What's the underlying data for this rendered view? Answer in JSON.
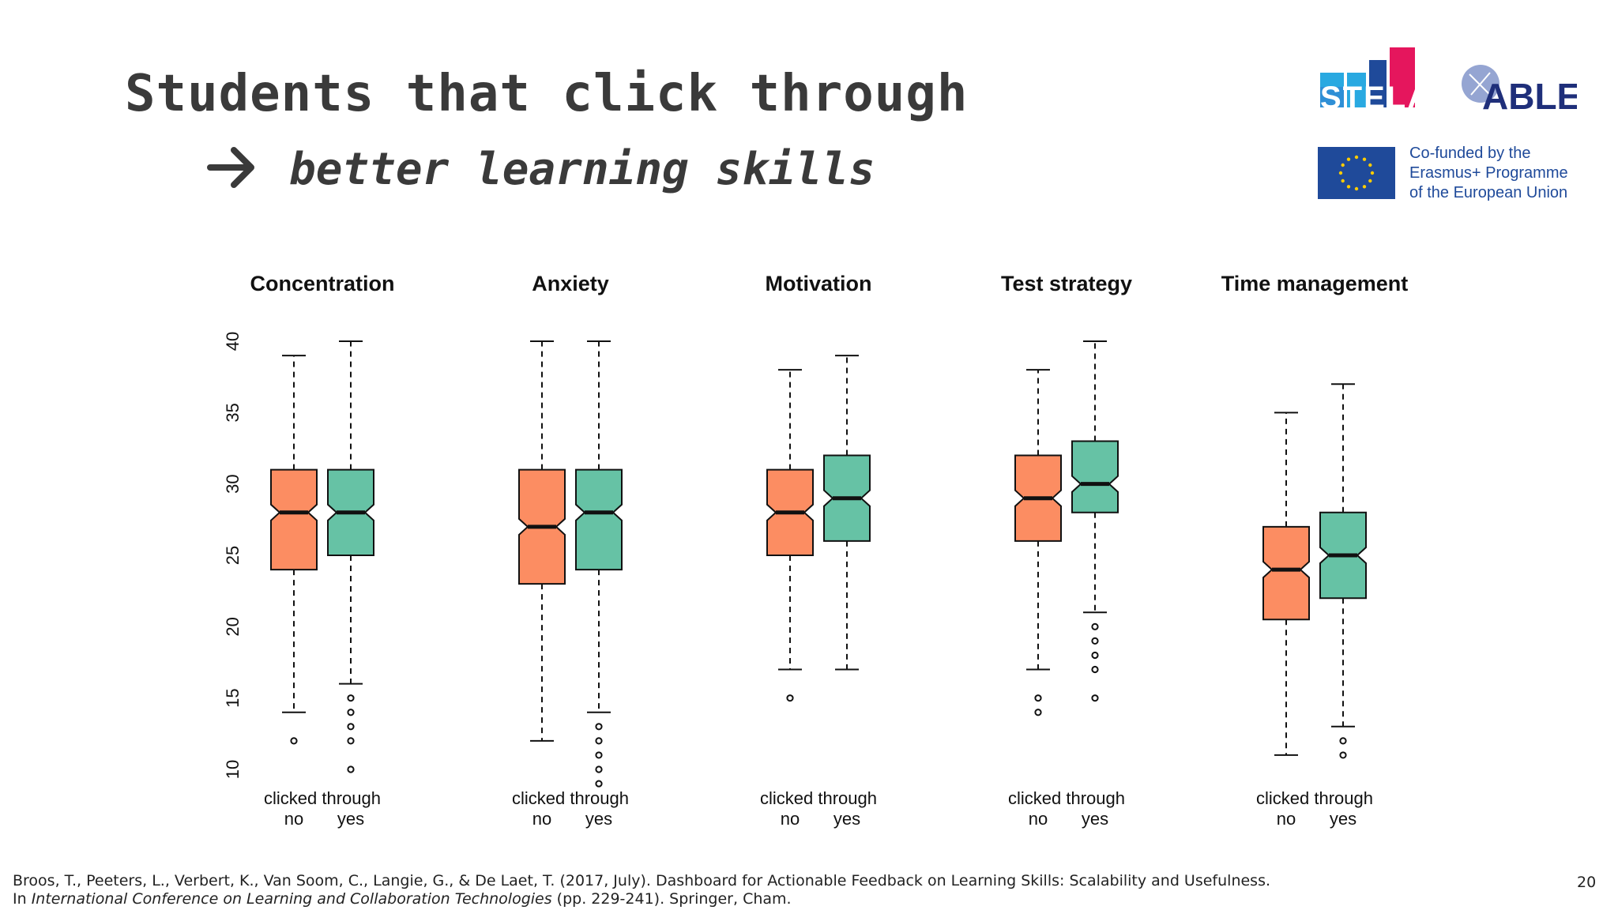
{
  "slide": {
    "title": "Students that click through",
    "subtitle": "better learning skills",
    "page_number": "20"
  },
  "logos": {
    "stela": "STELA",
    "able": "ABLE",
    "eu_lines": [
      "Co-funded by the",
      "Erasmus+ Programme",
      "of the European Union"
    ]
  },
  "reference": {
    "line1": "Broos, T., Peeters, L., Verbert, K., Van Soom, C., Langie, G., & De Laet, T. (2017, July). Dashboard for Actionable Feedback on Learning Skills: Scalability and Usefulness.",
    "line2_prefix": "In ",
    "line2_italic": "International Conference on Learning and Collaboration Technologies",
    "line2_suffix": " (pp. 229-241). Springer, Cham."
  },
  "colors": {
    "no": "#fc8d62",
    "yes": "#66c2a5",
    "text": "#3a3a3a",
    "eu_blue": "#1f4a9a"
  },
  "chart_data": {
    "type": "boxplot",
    "notched": true,
    "y_ticks": [
      10,
      15,
      20,
      25,
      30,
      35,
      40
    ],
    "ylim": [
      10,
      40
    ],
    "xlabel": "clicked through",
    "group_labels": [
      "no",
      "yes"
    ],
    "panels": [
      {
        "title": "Concentration",
        "boxes": [
          {
            "group": "no",
            "whisker_low": 14,
            "q1": 24,
            "median": 28,
            "q3": 31,
            "whisker_high": 39,
            "outliers": [
              12
            ]
          },
          {
            "group": "yes",
            "whisker_low": 16,
            "q1": 25,
            "median": 28,
            "q3": 31,
            "whisker_high": 40,
            "outliers": [
              15,
              14,
              13,
              12,
              10
            ]
          }
        ]
      },
      {
        "title": "Anxiety",
        "boxes": [
          {
            "group": "no",
            "whisker_low": 12,
            "q1": 23,
            "median": 27,
            "q3": 31,
            "whisker_high": 40,
            "outliers": []
          },
          {
            "group": "yes",
            "whisker_low": 14,
            "q1": 24,
            "median": 28,
            "q3": 31,
            "whisker_high": 40,
            "outliers": [
              13,
              12,
              11,
              10,
              9
            ]
          }
        ]
      },
      {
        "title": "Motivation",
        "boxes": [
          {
            "group": "no",
            "whisker_low": 17,
            "q1": 25,
            "median": 28,
            "q3": 31,
            "whisker_high": 38,
            "outliers": [
              15
            ]
          },
          {
            "group": "yes",
            "whisker_low": 17,
            "q1": 26,
            "median": 29,
            "q3": 32,
            "whisker_high": 39,
            "outliers": []
          }
        ]
      },
      {
        "title": "Test strategy",
        "boxes": [
          {
            "group": "no",
            "whisker_low": 17,
            "q1": 26,
            "median": 29,
            "q3": 32,
            "whisker_high": 38,
            "outliers": [
              15,
              14
            ]
          },
          {
            "group": "yes",
            "whisker_low": 21,
            "q1": 28,
            "median": 30,
            "q3": 33,
            "whisker_high": 40,
            "outliers": [
              20,
              19,
              18,
              17,
              15
            ]
          }
        ]
      },
      {
        "title": "Time management",
        "boxes": [
          {
            "group": "no",
            "whisker_low": 11,
            "q1": 20.5,
            "median": 24,
            "q3": 27,
            "whisker_high": 35,
            "outliers": []
          },
          {
            "group": "yes",
            "whisker_low": 13,
            "q1": 22,
            "median": 25,
            "q3": 28,
            "whisker_high": 37,
            "outliers": [
              12,
              11
            ]
          }
        ]
      }
    ]
  }
}
